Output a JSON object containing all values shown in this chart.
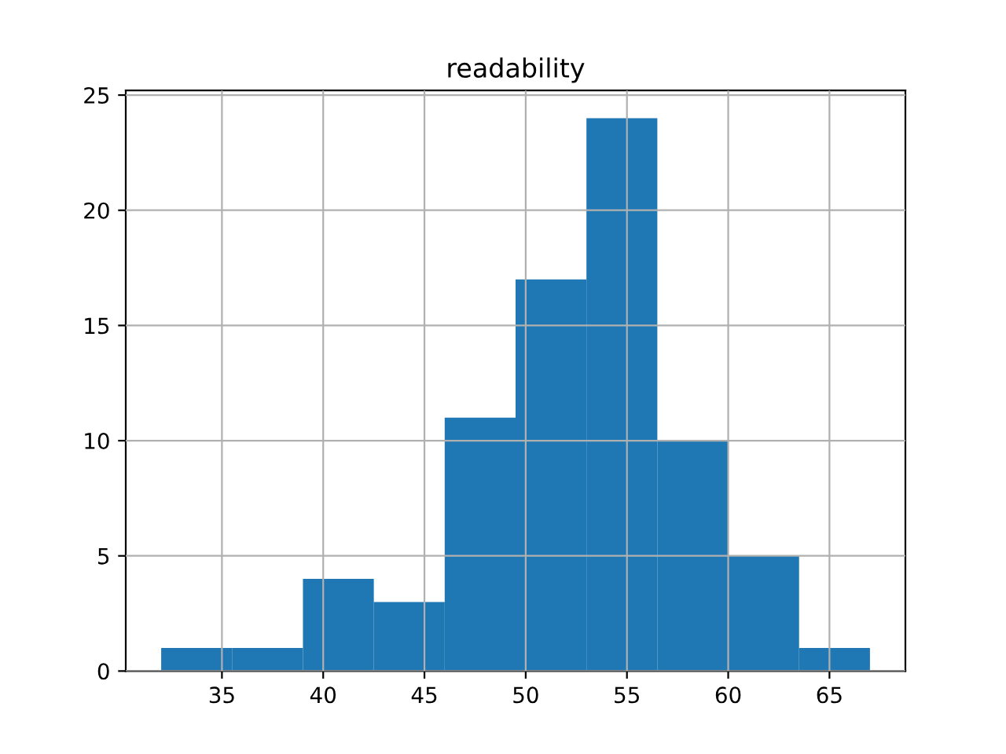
{
  "chart_data": {
    "type": "histogram",
    "title": "readability",
    "bins": [
      32,
      35.5,
      39,
      42.5,
      46,
      49.5,
      53,
      56.5,
      60,
      63.5,
      67
    ],
    "values": [
      1,
      1,
      4,
      3,
      11,
      17,
      24,
      10,
      5,
      1
    ],
    "color": "#1f77b4",
    "xlim": [
      30.25,
      68.75
    ],
    "xticks": [
      35,
      40,
      45,
      50,
      55,
      60,
      65
    ],
    "ylim": [
      0,
      25.2
    ],
    "yticks": [
      0,
      5,
      10,
      15,
      20,
      25
    ],
    "grid": true
  }
}
